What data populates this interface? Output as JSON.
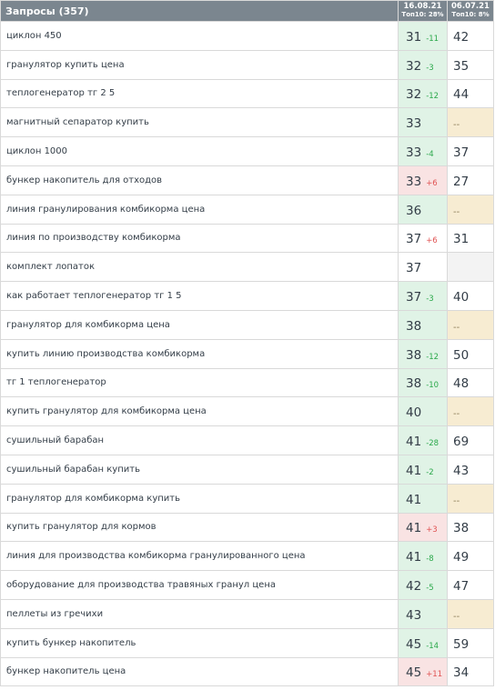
{
  "header": {
    "queries_label": "Запросы (357)",
    "col1_date": "16.08.21",
    "col1_top": "Топ10: 28%",
    "col2_date": "06.07.21",
    "col2_top": "Топ10: 8%"
  },
  "colors": {
    "header_bg": "#7b868f",
    "improved_bg": "#e0f3e6",
    "declined_bg": "#f9e3e3",
    "missing_bg": "#f7ecd2",
    "empty_bg": "#f3f3f3",
    "up_delta": "#2aa84a",
    "down_delta": "#e05252"
  },
  "rows": [
    {
      "query": "циклон 450",
      "pos": "31",
      "delta": "-11",
      "dir": "up",
      "bg": "green",
      "prev": "42",
      "prev_bg": "white"
    },
    {
      "query": "гранулятор купить цена",
      "pos": "32",
      "delta": "-3",
      "dir": "up",
      "bg": "green",
      "prev": "35",
      "prev_bg": "white"
    },
    {
      "query": "теплогенератор тг 2 5",
      "pos": "32",
      "delta": "-12",
      "dir": "up",
      "bg": "green",
      "prev": "44",
      "prev_bg": "white"
    },
    {
      "query": "магнитный сепаратор купить",
      "pos": "33",
      "delta": "",
      "dir": "",
      "bg": "green",
      "prev": "--",
      "prev_bg": "yellow"
    },
    {
      "query": "циклон 1000",
      "pos": "33",
      "delta": "-4",
      "dir": "up",
      "bg": "green",
      "prev": "37",
      "prev_bg": "white"
    },
    {
      "query": "бункер накопитель для отходов",
      "pos": "33",
      "delta": "+6",
      "dir": "down",
      "bg": "red",
      "prev": "27",
      "prev_bg": "white"
    },
    {
      "query": "линия гранулирования комбикорма цена",
      "pos": "36",
      "delta": "",
      "dir": "",
      "bg": "green",
      "prev": "--",
      "prev_bg": "yellow"
    },
    {
      "query": "линия по производству комбикорма",
      "pos": "37",
      "delta": "+6",
      "dir": "down",
      "bg": "white",
      "prev": "31",
      "prev_bg": "white"
    },
    {
      "query": "комплект лопаток",
      "pos": "37",
      "delta": "",
      "dir": "",
      "bg": "white",
      "prev": "",
      "prev_bg": "gray"
    },
    {
      "query": "как работает теплогенератор тг 1 5",
      "pos": "37",
      "delta": "-3",
      "dir": "up",
      "bg": "green",
      "prev": "40",
      "prev_bg": "white"
    },
    {
      "query": "гранулятор для комбикорма цена",
      "pos": "38",
      "delta": "",
      "dir": "",
      "bg": "green",
      "prev": "--",
      "prev_bg": "yellow"
    },
    {
      "query": "купить линию производства комбикорма",
      "pos": "38",
      "delta": "-12",
      "dir": "up",
      "bg": "green",
      "prev": "50",
      "prev_bg": "white"
    },
    {
      "query": "тг 1 теплогенератор",
      "pos": "38",
      "delta": "-10",
      "dir": "up",
      "bg": "green",
      "prev": "48",
      "prev_bg": "white"
    },
    {
      "query": "купить гранулятор для комбикорма цена",
      "pos": "40",
      "delta": "",
      "dir": "",
      "bg": "green",
      "prev": "--",
      "prev_bg": "yellow"
    },
    {
      "query": "сушильный барабан",
      "pos": "41",
      "delta": "-28",
      "dir": "up",
      "bg": "green",
      "prev": "69",
      "prev_bg": "white"
    },
    {
      "query": "сушильный барабан купить",
      "pos": "41",
      "delta": "-2",
      "dir": "up",
      "bg": "green",
      "prev": "43",
      "prev_bg": "white"
    },
    {
      "query": "гранулятор для комбикорма купить",
      "pos": "41",
      "delta": "",
      "dir": "",
      "bg": "green",
      "prev": "--",
      "prev_bg": "yellow"
    },
    {
      "query": "купить гранулятор для кормов",
      "pos": "41",
      "delta": "+3",
      "dir": "down",
      "bg": "red",
      "prev": "38",
      "prev_bg": "white"
    },
    {
      "query": "линия для производства комбикорма гранулированного цена",
      "pos": "41",
      "delta": "-8",
      "dir": "up",
      "bg": "green",
      "prev": "49",
      "prev_bg": "white"
    },
    {
      "query": "оборудование для производства травяных гранул цена",
      "pos": "42",
      "delta": "-5",
      "dir": "up",
      "bg": "green",
      "prev": "47",
      "prev_bg": "white"
    },
    {
      "query": "пеллеты из гречихи",
      "pos": "43",
      "delta": "",
      "dir": "",
      "bg": "green",
      "prev": "--",
      "prev_bg": "yellow"
    },
    {
      "query": "купить бункер накопитель",
      "pos": "45",
      "delta": "-14",
      "dir": "up",
      "bg": "green",
      "prev": "59",
      "prev_bg": "white"
    },
    {
      "query": "бункер накопитель цена",
      "pos": "45",
      "delta": "+11",
      "dir": "down",
      "bg": "red",
      "prev": "34",
      "prev_bg": "white"
    }
  ]
}
